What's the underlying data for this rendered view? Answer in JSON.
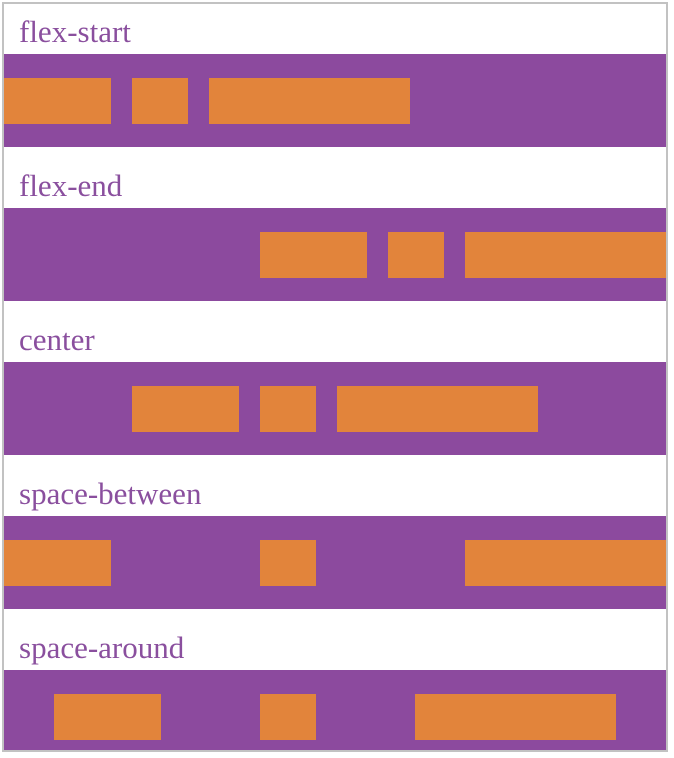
{
  "colors": {
    "container_purple": "#8c4a9e",
    "item_orange": "#e2843b",
    "label_purple": "#8a4f9e",
    "frame_border": "#c2c2c2",
    "page_background": "#ffffff"
  },
  "item_height": 46,
  "sections": [
    {
      "label": "flex-start",
      "justify": "flex-start",
      "gap": 21,
      "item_widths": [
        107,
        56,
        201
      ]
    },
    {
      "label": "flex-end",
      "justify": "flex-end",
      "gap": 21,
      "item_widths": [
        107,
        56,
        201
      ]
    },
    {
      "label": "center",
      "justify": "center",
      "gap": 21,
      "item_widths": [
        107,
        56,
        201
      ]
    },
    {
      "label": "space-between",
      "justify": "space-between",
      "gap": 0,
      "item_widths": [
        107,
        56,
        201
      ]
    },
    {
      "label": "space-around",
      "justify": "space-around",
      "gap": 0,
      "item_widths": [
        107,
        56,
        201
      ]
    }
  ]
}
